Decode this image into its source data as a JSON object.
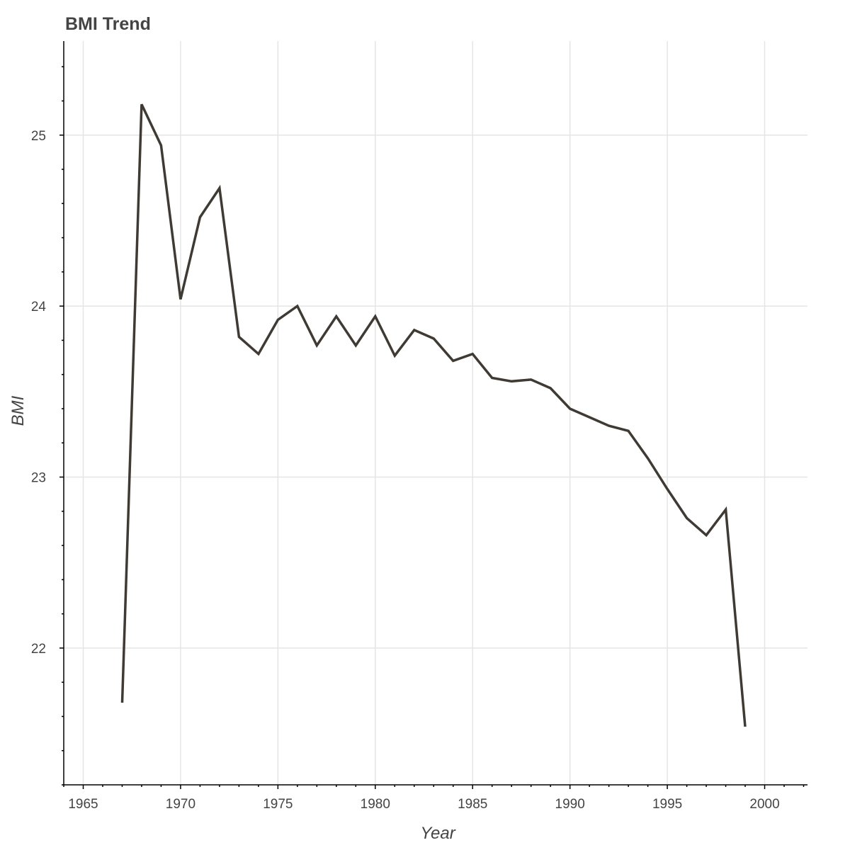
{
  "chart_data": {
    "type": "line",
    "title": "BMI Trend",
    "xlabel": "Year",
    "ylabel": "BMI",
    "xlim": [
      1964,
      2002.2
    ],
    "ylim": [
      21.2,
      25.55
    ],
    "x_ticks": [
      1965,
      1970,
      1975,
      1980,
      1985,
      1990,
      1995,
      2000
    ],
    "x_tick_labels": [
      "1965",
      "1970",
      "1975",
      "1980",
      "1985",
      "1990",
      "1995",
      "2000"
    ],
    "y_ticks": [
      22,
      23,
      24,
      25
    ],
    "y_tick_labels": [
      "22",
      "23",
      "24",
      "25"
    ],
    "grid": true,
    "line_color": "#3f3a33",
    "series": [
      {
        "x": [
          1967,
          1968,
          1969,
          1970,
          1971,
          1972,
          1973,
          1974,
          1975,
          1976,
          1977,
          1978,
          1979,
          1980,
          1981,
          1982,
          1983,
          1984,
          1985,
          1986,
          1987,
          1988,
          1989,
          1990,
          1991,
          1992,
          1993,
          1994,
          1995,
          1996,
          1997,
          1998,
          1999
        ],
        "values": [
          21.68,
          25.18,
          24.94,
          24.04,
          24.52,
          24.69,
          23.82,
          23.72,
          23.92,
          24.0,
          23.77,
          23.94,
          23.77,
          23.94,
          23.71,
          23.86,
          23.81,
          23.68,
          23.72,
          23.58,
          23.56,
          23.57,
          23.52,
          23.4,
          23.35,
          23.3,
          23.27,
          23.11,
          22.93,
          22.76,
          22.66,
          22.81,
          21.54
        ]
      }
    ]
  }
}
